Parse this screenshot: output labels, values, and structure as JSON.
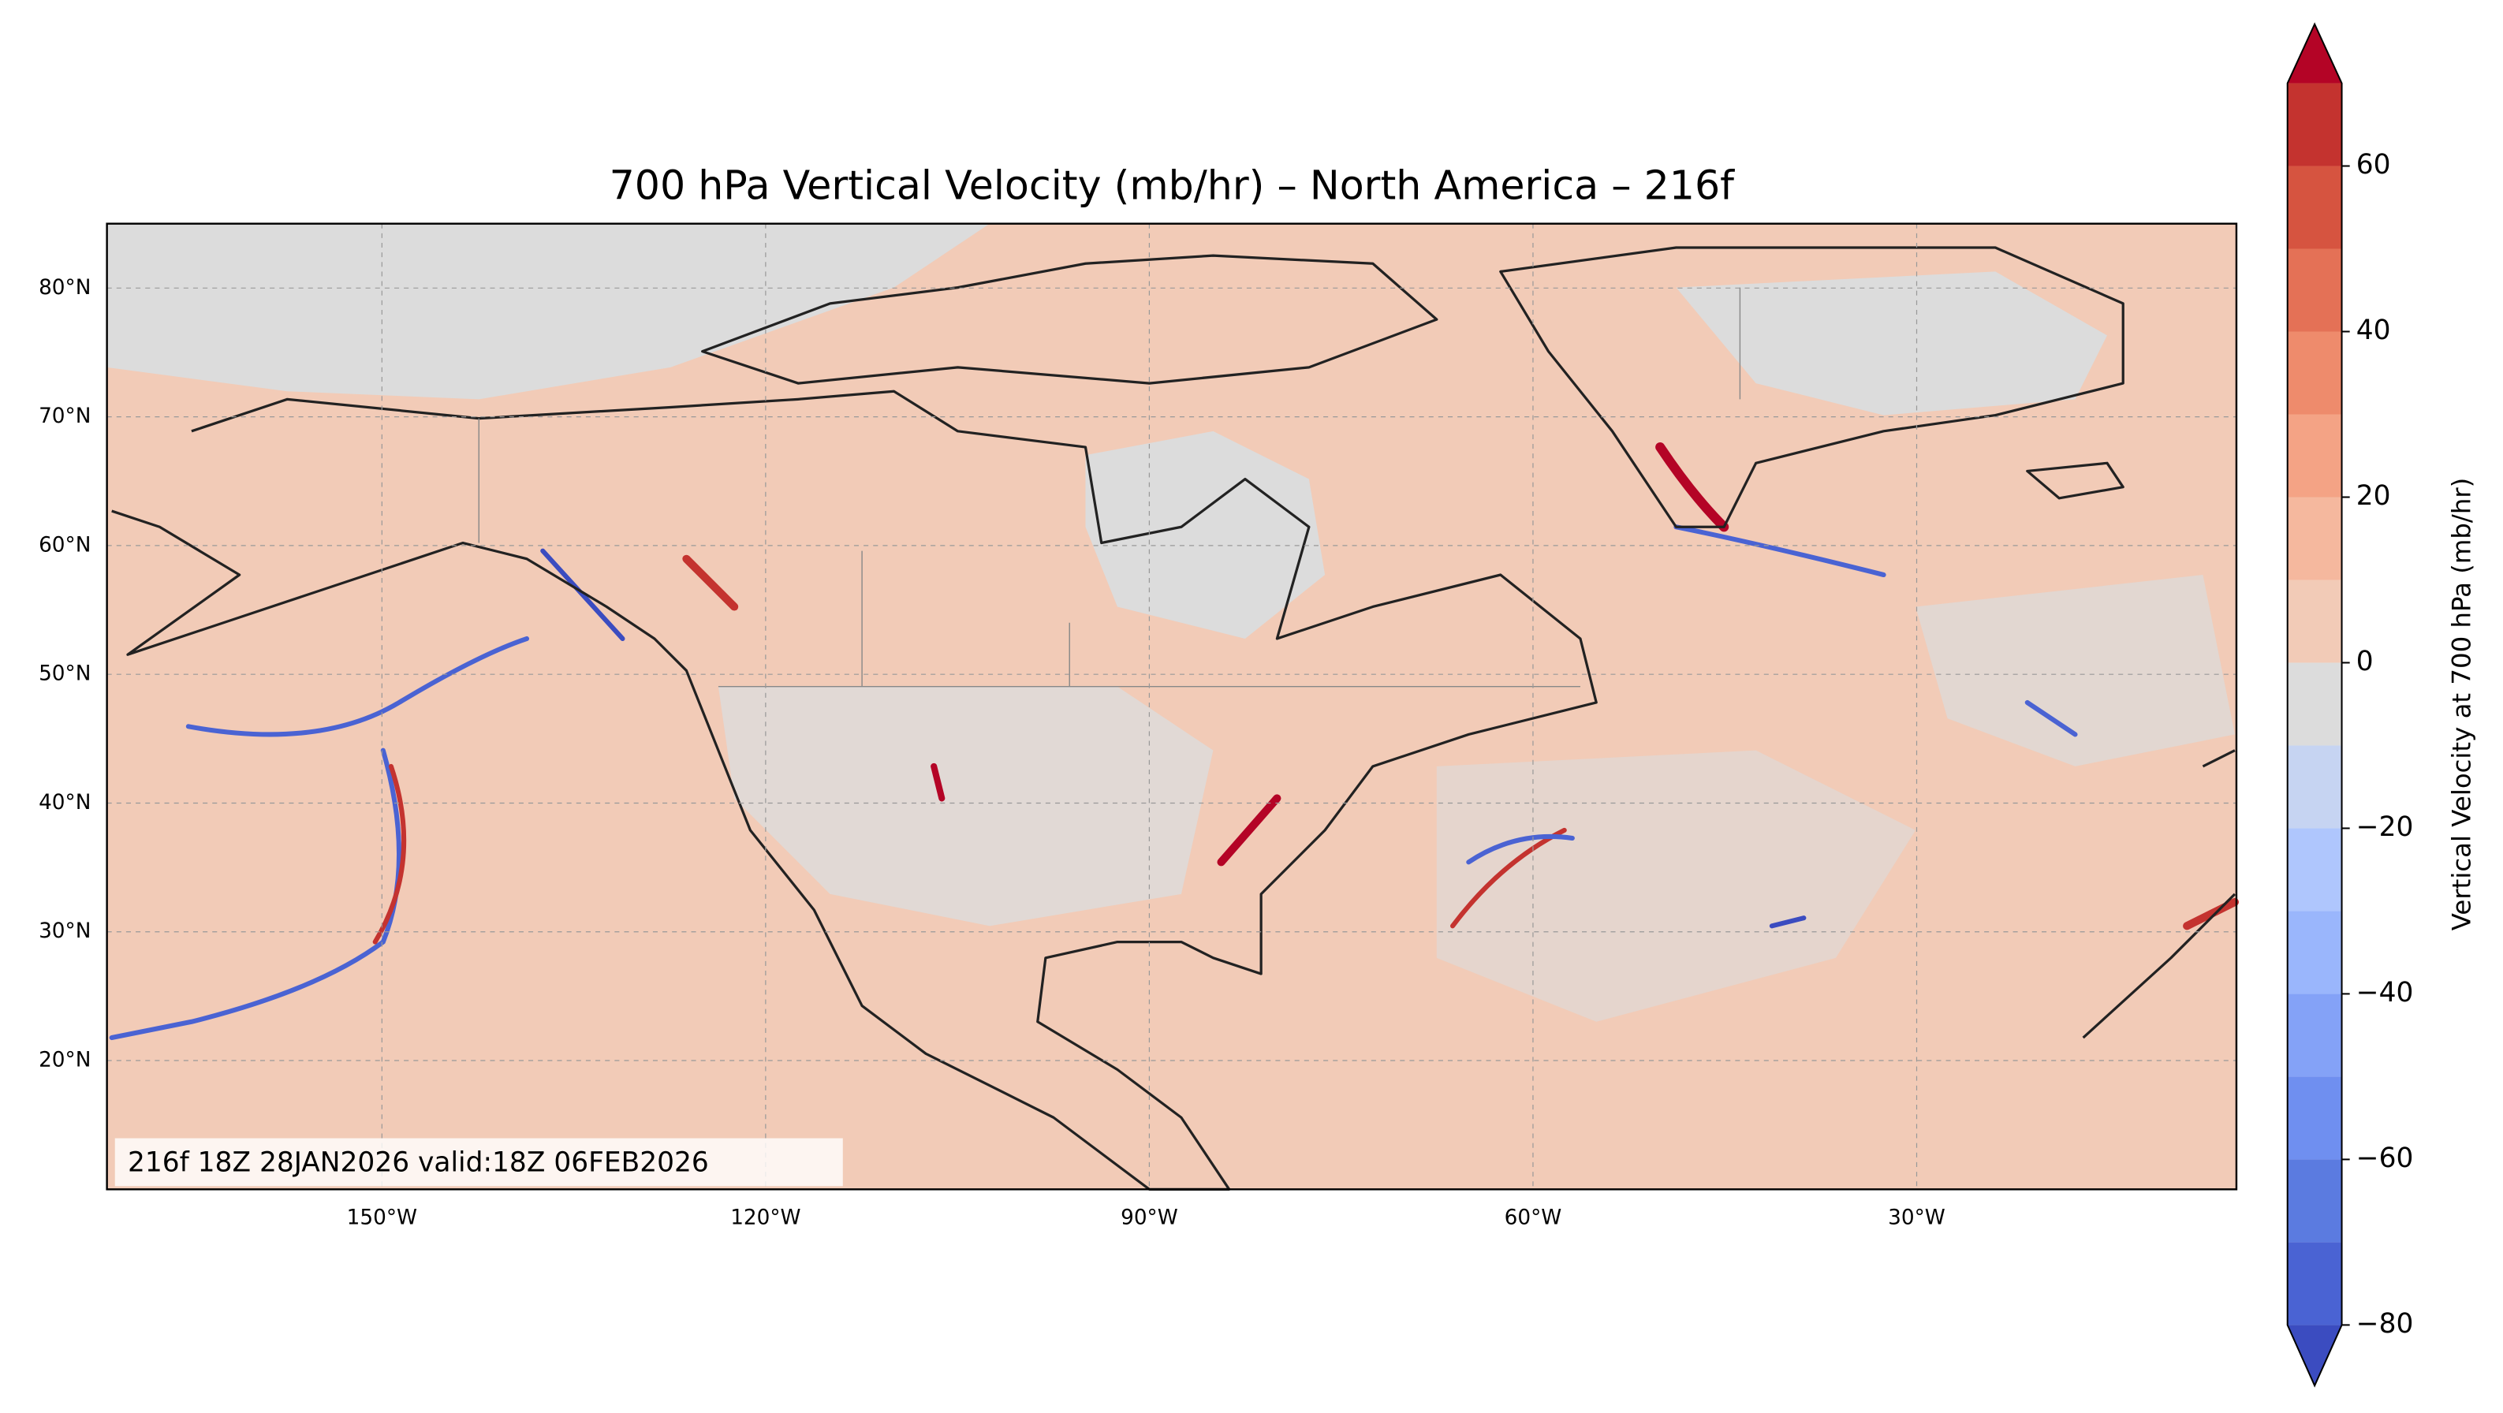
{
  "chart_data": {
    "type": "map",
    "title": "700 hPa Vertical Velocity (mb/hr) – North America – 216f",
    "annotation": "216f 18Z 28JAN2026 valid:18Z 06FEB2026",
    "xlim": [
      -171.5,
      -5
    ],
    "ylim": [
      10,
      85
    ],
    "xticks": [
      {
        "value": -150,
        "label": "150°W"
      },
      {
        "value": -120,
        "label": "120°W"
      },
      {
        "value": -90,
        "label": "90°W"
      },
      {
        "value": -60,
        "label": "60°W"
      },
      {
        "value": -30,
        "label": "30°W"
      }
    ],
    "yticks": [
      {
        "value": 20,
        "label": "20°N"
      },
      {
        "value": 30,
        "label": "30°N"
      },
      {
        "value": 40,
        "label": "40°N"
      },
      {
        "value": 50,
        "label": "50°N"
      },
      {
        "value": 60,
        "label": "60°N"
      },
      {
        "value": 70,
        "label": "70°N"
      },
      {
        "value": 80,
        "label": "80°N"
      }
    ],
    "grid": true,
    "colorbar": {
      "label": "Vertical Velocity at 700 hPa (mb/hr)",
      "levels": [
        -80,
        -70,
        -60,
        -50,
        -40,
        -30,
        -20,
        -10,
        0,
        10,
        20,
        30,
        40,
        50,
        60,
        70
      ],
      "colors": [
        "#4a63d3",
        "#5b7be0",
        "#6f8ff0",
        "#84a2f7",
        "#9ab6fc",
        "#afc6fd",
        "#c6d4f2",
        "#dcdcdc",
        "#f2cbb7",
        "#f5b89e",
        "#f4a385",
        "#ee8b6c",
        "#e47156",
        "#d65440",
        "#c4332f"
      ],
      "under_color": "#3b4cc0",
      "over_color": "#b40426",
      "ticks": [
        {
          "value": -80,
          "label": "−80"
        },
        {
          "value": -60,
          "label": "−60"
        },
        {
          "value": -40,
          "label": "−40"
        },
        {
          "value": -20,
          "label": "−20"
        },
        0,
        20,
        40,
        60
      ]
    }
  }
}
